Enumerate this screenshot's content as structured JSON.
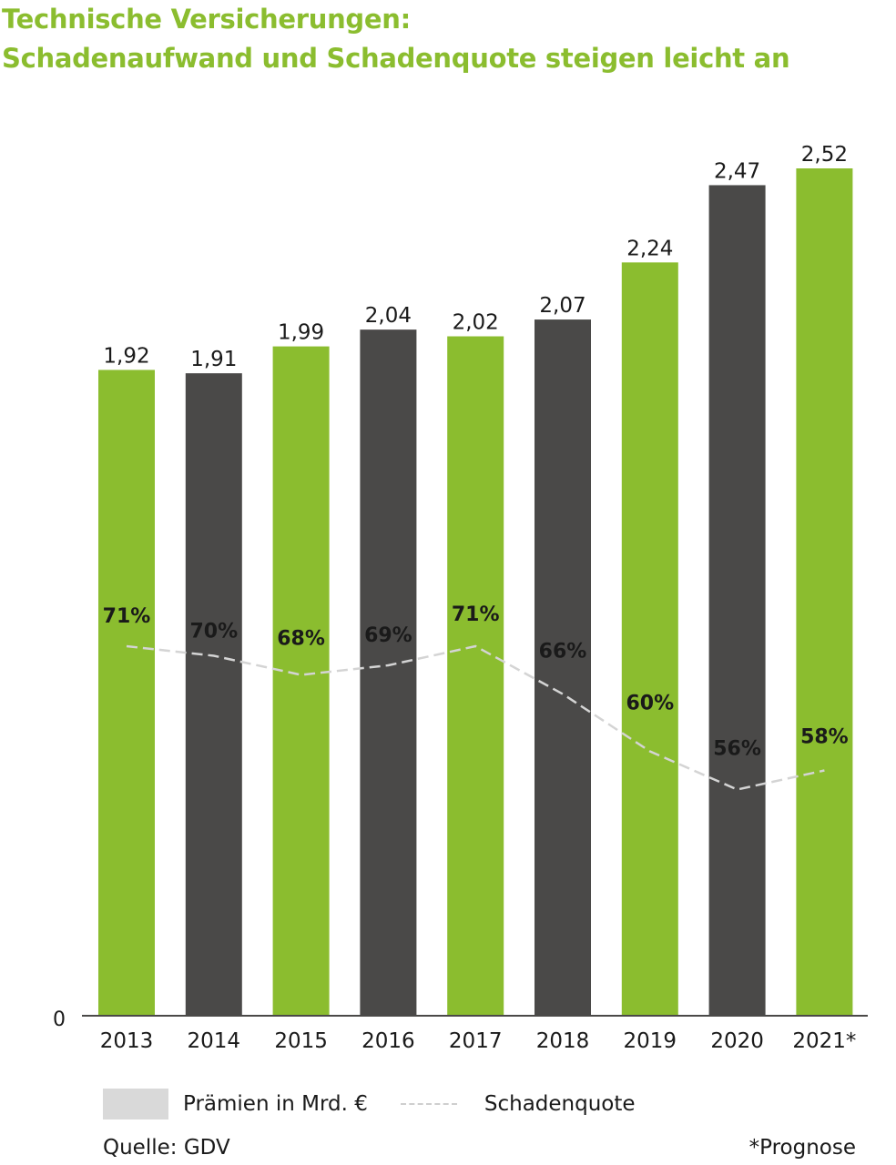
{
  "title": {
    "line1": "Technische Versicherungen:",
    "line2": "Schadenaufwand und Schadenquote steigen leicht an"
  },
  "colors": {
    "green": "#8bbd2f",
    "dark": "#4a4948",
    "line": "#d4d4d4",
    "legend_swatch": "#d9d9d9"
  },
  "chart_data": {
    "type": "bar",
    "categories": [
      "2013",
      "2014",
      "2015",
      "2016",
      "2017",
      "2018",
      "2019",
      "2020",
      "2021*"
    ],
    "series": [
      {
        "name": "Prämien in Mrd. €",
        "values": [
          1.92,
          1.91,
          1.99,
          2.04,
          2.02,
          2.07,
          2.24,
          2.47,
          2.52
        ],
        "labels": [
          "1,92",
          "1,91",
          "1,99",
          "2,04",
          "2,02",
          "2,07",
          "2,24",
          "2,47",
          "2,52"
        ],
        "colors": [
          "green",
          "dark",
          "green",
          "dark",
          "green",
          "dark",
          "green",
          "dark",
          "green"
        ]
      },
      {
        "name": "Schadenquote",
        "type": "line",
        "style": "dashed",
        "values": [
          71,
          70,
          68,
          69,
          71,
          66,
          60,
          56,
          58
        ],
        "labels": [
          "71%",
          "70%",
          "68%",
          "69%",
          "71%",
          "66%",
          "60%",
          "56%",
          "58%"
        ],
        "unit": "%"
      }
    ],
    "y_axis_label": "0",
    "ylim": [
      0,
      2.52
    ],
    "legend_position": "bottom-left",
    "grid": false
  },
  "legend": {
    "bars": "Prämien in Mrd. €",
    "line": "Schadenquote"
  },
  "source": "Quelle: GDV",
  "note": "*Prognose"
}
